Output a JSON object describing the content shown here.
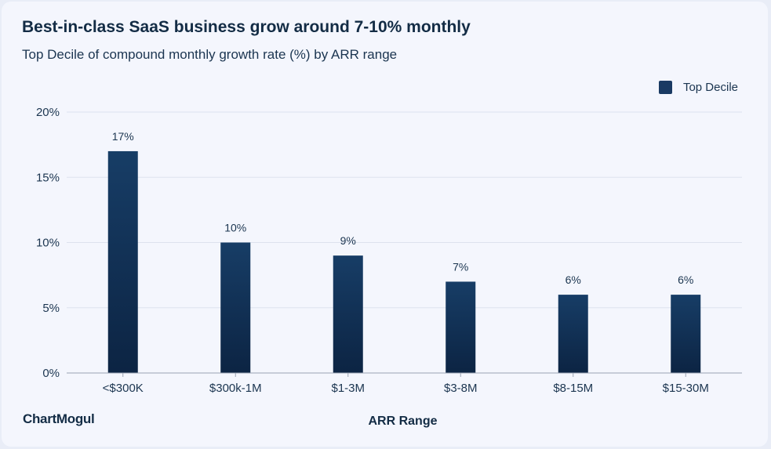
{
  "chart_data": {
    "type": "bar",
    "title": "Best-in-class SaaS business grow around 7-10% monthly",
    "subtitle": "Top Decile of compound monthly growth rate (%) by ARR range",
    "xlabel": "ARR Range",
    "ylabel": "",
    "categories": [
      "<$300K",
      "$300k-1M",
      "$1-3M",
      "$3-8M",
      "$8-15M",
      "$15-30M"
    ],
    "series": [
      {
        "name": "Top Decile",
        "values": [
          17,
          10,
          9,
          7,
          6,
          6
        ]
      }
    ],
    "data_labels": [
      "17%",
      "10%",
      "9%",
      "7%",
      "6%",
      "6%"
    ],
    "ylim": [
      0,
      20
    ],
    "yticks": [
      0,
      5,
      10,
      15,
      20
    ],
    "ytick_labels": [
      "0%",
      "5%",
      "10%",
      "15%",
      "20%"
    ],
    "grid": true,
    "legend_position": "top-right",
    "colors": {
      "bar_top": "#173d66",
      "bar_bottom": "#0c2443",
      "grid": "#dde2ee",
      "axis": "#9aa3b3"
    }
  },
  "brand": {
    "name": "ChartMogul"
  }
}
